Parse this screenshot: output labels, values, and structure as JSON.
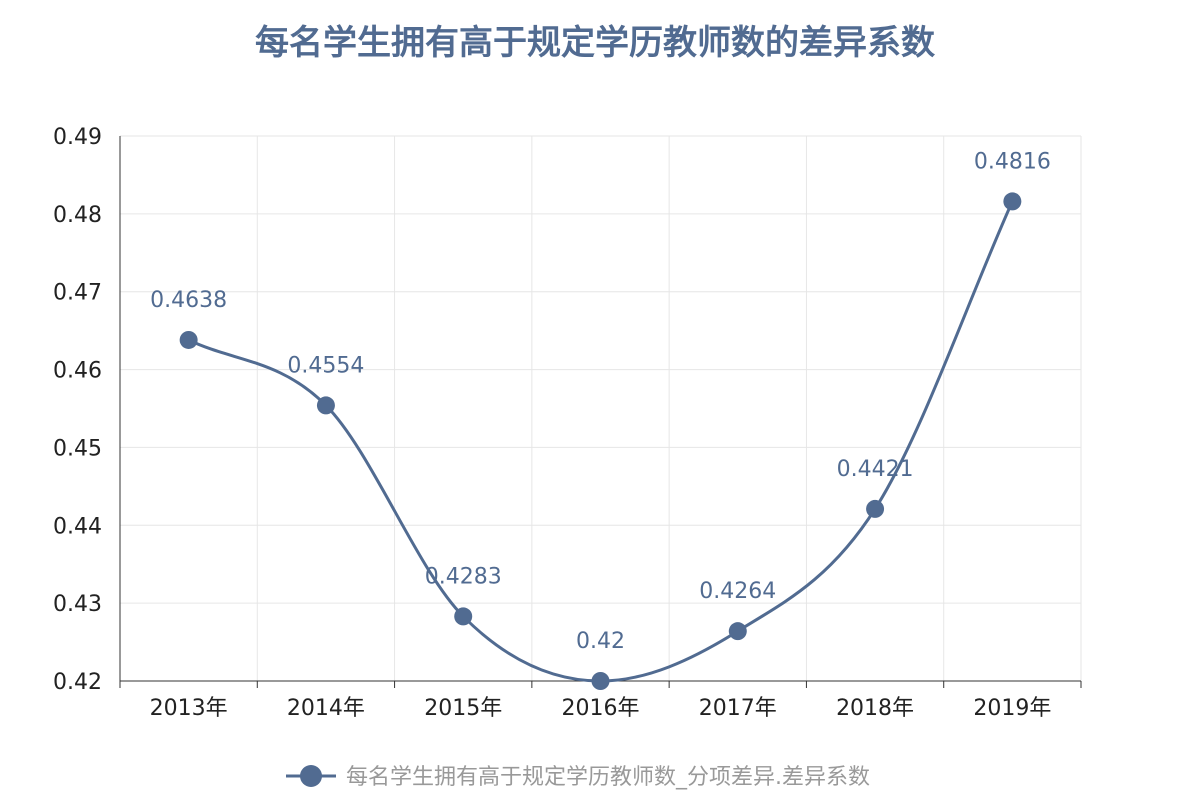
{
  "chart_data": {
    "type": "line",
    "title": "每名学生拥有高于规定学历教师数的差异系数",
    "categories": [
      "2013年",
      "2014年",
      "2015年",
      "2016年",
      "2017年",
      "2018年",
      "2019年"
    ],
    "series": [
      {
        "name": "每名学生拥有高于规定学历教师数_分项差异.差异系数",
        "values": [
          0.4638,
          0.4554,
          0.4283,
          0.42,
          0.4264,
          0.4421,
          0.4816
        ],
        "labels": [
          "0.4638",
          "0.4554",
          "0.4283",
          "0.42",
          "0.4264",
          "0.4421",
          "0.4816"
        ]
      }
    ],
    "yticks": [
      "0.42",
      "0.43",
      "0.44",
      "0.45",
      "0.46",
      "0.47",
      "0.48",
      "0.49"
    ],
    "ylim": [
      0.42,
      0.49
    ],
    "smooth": true,
    "grid": true,
    "legend": "bottom-center",
    "xlabel": "",
    "ylabel": ""
  },
  "colors": {
    "series": "#516b91",
    "title": "#516b91",
    "grid": "#e6e6e6",
    "axis": "#333333",
    "legend_text": "#999999",
    "tick_text": "#222222"
  }
}
